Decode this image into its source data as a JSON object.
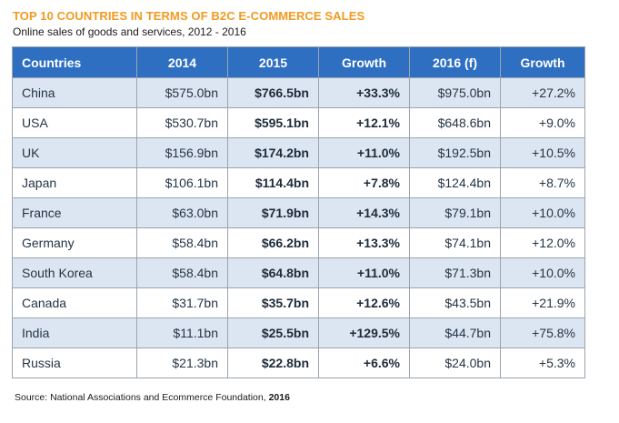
{
  "title": "TOP 10 COUNTRIES IN TERMS OF B2C E-COMMERCE SALES",
  "subtitle": "Online sales of goods and services, 2012 - 2016",
  "columns": [
    "Countries",
    "2014",
    "2015",
    "Growth",
    "2016 (f)",
    "Growth"
  ],
  "rows": [
    [
      "China",
      "$575.0bn",
      "$766.5bn",
      "+33.3%",
      "$975.0bn",
      "+27.2%"
    ],
    [
      "USA",
      "$530.7bn",
      "$595.1bn",
      "+12.1%",
      "$648.6bn",
      "+9.0%"
    ],
    [
      "UK",
      "$156.9bn",
      "$174.2bn",
      "+11.0%",
      "$192.5bn",
      "+10.5%"
    ],
    [
      "Japan",
      "$106.1bn",
      "$114.4bn",
      "+7.8%",
      "$124.4bn",
      "+8.7%"
    ],
    [
      "France",
      "$63.0bn",
      "$71.9bn",
      "+14.3%",
      "$79.1bn",
      "+10.0%"
    ],
    [
      "Germany",
      "$58.4bn",
      "$66.2bn",
      "+13.3%",
      "$74.1bn",
      "+12.0%"
    ],
    [
      "South Korea",
      "$58.4bn",
      "$64.8bn",
      "+11.0%",
      "$71.3bn",
      "+10.0%"
    ],
    [
      "Canada",
      "$31.7bn",
      "$35.7bn",
      "+12.6%",
      "$43.5bn",
      "+21.9%"
    ],
    [
      "India",
      "$11.1bn",
      "$25.5bn",
      "+129.5%",
      "$44.7bn",
      "+75.8%"
    ],
    [
      "Russia",
      "$21.3bn",
      "$22.8bn",
      "+6.6%",
      "$24.0bn",
      "+5.3%"
    ]
  ],
  "source": {
    "text": "Source: National Associations and Ecommerce Foundation, ",
    "year": "2016"
  },
  "colors": {
    "title": "#f29a1f",
    "header_bg": "#2e6fc2",
    "row_alt": "#dce6f2"
  }
}
